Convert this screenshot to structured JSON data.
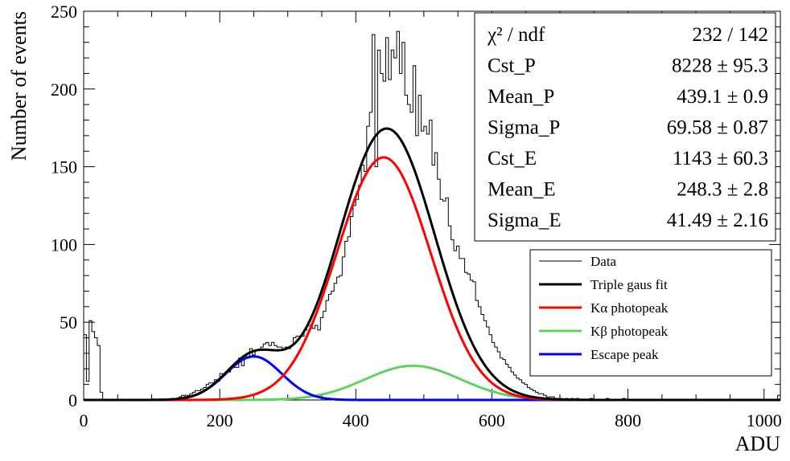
{
  "chart_data": {
    "type": "line",
    "xlabel": "ADU",
    "ylabel": "Number of events",
    "xlim": [
      0,
      1024
    ],
    "ylim": [
      0,
      250
    ],
    "x_ticks": [
      0,
      200,
      400,
      600,
      800,
      1000
    ],
    "y_ticks": [
      0,
      50,
      100,
      150,
      200,
      250
    ],
    "grid": false,
    "stats_box": {
      "rows": [
        {
          "label": "χ² / ndf",
          "value": "232 / 142"
        },
        {
          "label": "Cst_P",
          "value": "8228 ± 95.3"
        },
        {
          "label": "Mean_P",
          "value": "439.1 ± 0.9"
        },
        {
          "label": "Sigma_P",
          "value": "69.58 ± 0.87"
        },
        {
          "label": "Cst_E",
          "value": "1143 ± 60.3"
        },
        {
          "label": "Mean_E",
          "value": "248.3 ± 2.8"
        },
        {
          "label": "Sigma_E",
          "value": "41.49 ± 2.16"
        }
      ]
    },
    "legend": {
      "position": "right",
      "entries": [
        {
          "label": "Data",
          "color": "#000000",
          "width": 1
        },
        {
          "label": "Triple gaus fit",
          "color": "#000000",
          "width": 3
        },
        {
          "label": "Kα photopeak",
          "color": "#ff0000",
          "width": 3
        },
        {
          "label": "Kβ photopeak",
          "color": "#5fd35f",
          "width": 3
        },
        {
          "label": "Escape peak",
          "color": "#0000ff",
          "width": 3
        }
      ]
    },
    "components": {
      "k_alpha": {
        "amplitude": 156,
        "mean": 441,
        "sigma": 69,
        "color": "#ff0000"
      },
      "k_beta": {
        "amplitude": 22,
        "mean": 484,
        "sigma": 70,
        "color": "#5fd35f"
      },
      "escape": {
        "amplitude": 28,
        "mean": 250,
        "sigma": 41,
        "color": "#0000ff"
      }
    },
    "fit_color": "#000000",
    "data_series": {
      "bin_width": 4,
      "x": [
        0,
        4,
        8,
        12,
        16,
        20,
        24,
        128,
        136,
        140,
        144,
        148,
        152,
        156,
        160,
        164,
        168,
        172,
        176,
        180,
        184,
        188,
        192,
        196,
        200,
        204,
        208,
        212,
        216,
        220,
        224,
        228,
        232,
        236,
        240,
        244,
        248,
        252,
        256,
        260,
        264,
        268,
        272,
        276,
        280,
        284,
        288,
        292,
        296,
        300,
        304,
        308,
        312,
        316,
        320,
        324,
        328,
        332,
        336,
        340,
        344,
        348,
        352,
        356,
        360,
        364,
        368,
        372,
        376,
        380,
        384,
        388,
        392,
        396,
        400,
        404,
        408,
        412,
        416,
        420,
        424,
        428,
        432,
        436,
        440,
        444,
        448,
        452,
        456,
        460,
        464,
        468,
        472,
        476,
        480,
        484,
        488,
        492,
        496,
        500,
        504,
        508,
        512,
        516,
        520,
        524,
        528,
        532,
        536,
        540,
        544,
        548,
        552,
        556,
        560,
        564,
        568,
        572,
        576,
        580,
        584,
        588,
        592,
        596,
        600,
        604,
        608,
        612,
        616,
        620,
        624,
        628,
        632,
        636,
        640,
        644,
        648,
        652,
        656,
        660,
        664,
        668,
        672,
        676,
        680,
        684,
        688,
        692,
        696,
        700,
        708,
        716,
        724,
        744,
        768,
        792,
        1020
      ],
      "y": [
        42,
        12,
        51,
        44,
        40,
        35,
        5,
        1,
        1,
        2,
        3,
        2,
        3,
        4,
        5,
        6,
        6,
        7,
        8,
        10,
        11,
        11,
        13,
        12,
        17,
        16,
        18,
        18,
        21,
        21,
        21,
        27,
        22,
        28,
        27,
        33,
        29,
        32,
        32,
        34,
        36,
        37,
        35,
        37,
        35,
        34,
        34,
        33,
        34,
        33,
        35,
        40,
        41,
        41,
        41,
        45,
        48,
        48,
        46,
        48,
        45,
        53,
        57,
        64,
        68,
        70,
        75,
        79,
        80,
        92,
        102,
        105,
        118,
        125,
        129,
        138,
        151,
        147,
        176,
        185,
        235,
        150,
        225,
        210,
        205,
        233,
        206,
        225,
        220,
        237,
        210,
        230,
        196,
        190,
        185,
        215,
        170,
        196,
        173,
        176,
        171,
        180,
        151,
        159,
        142,
        129,
        128,
        130,
        112,
        103,
        96,
        99,
        91,
        91,
        82,
        81,
        77,
        76,
        64,
        60,
        55,
        51,
        47,
        42,
        37,
        34,
        31,
        27,
        26,
        23,
        21,
        18,
        16,
        14,
        13,
        11,
        10,
        8,
        7,
        6,
        5,
        4,
        4,
        3,
        2,
        2,
        2,
        1,
        1,
        1,
        1,
        1,
        1,
        1,
        1,
        1,
        3
      ]
    }
  }
}
